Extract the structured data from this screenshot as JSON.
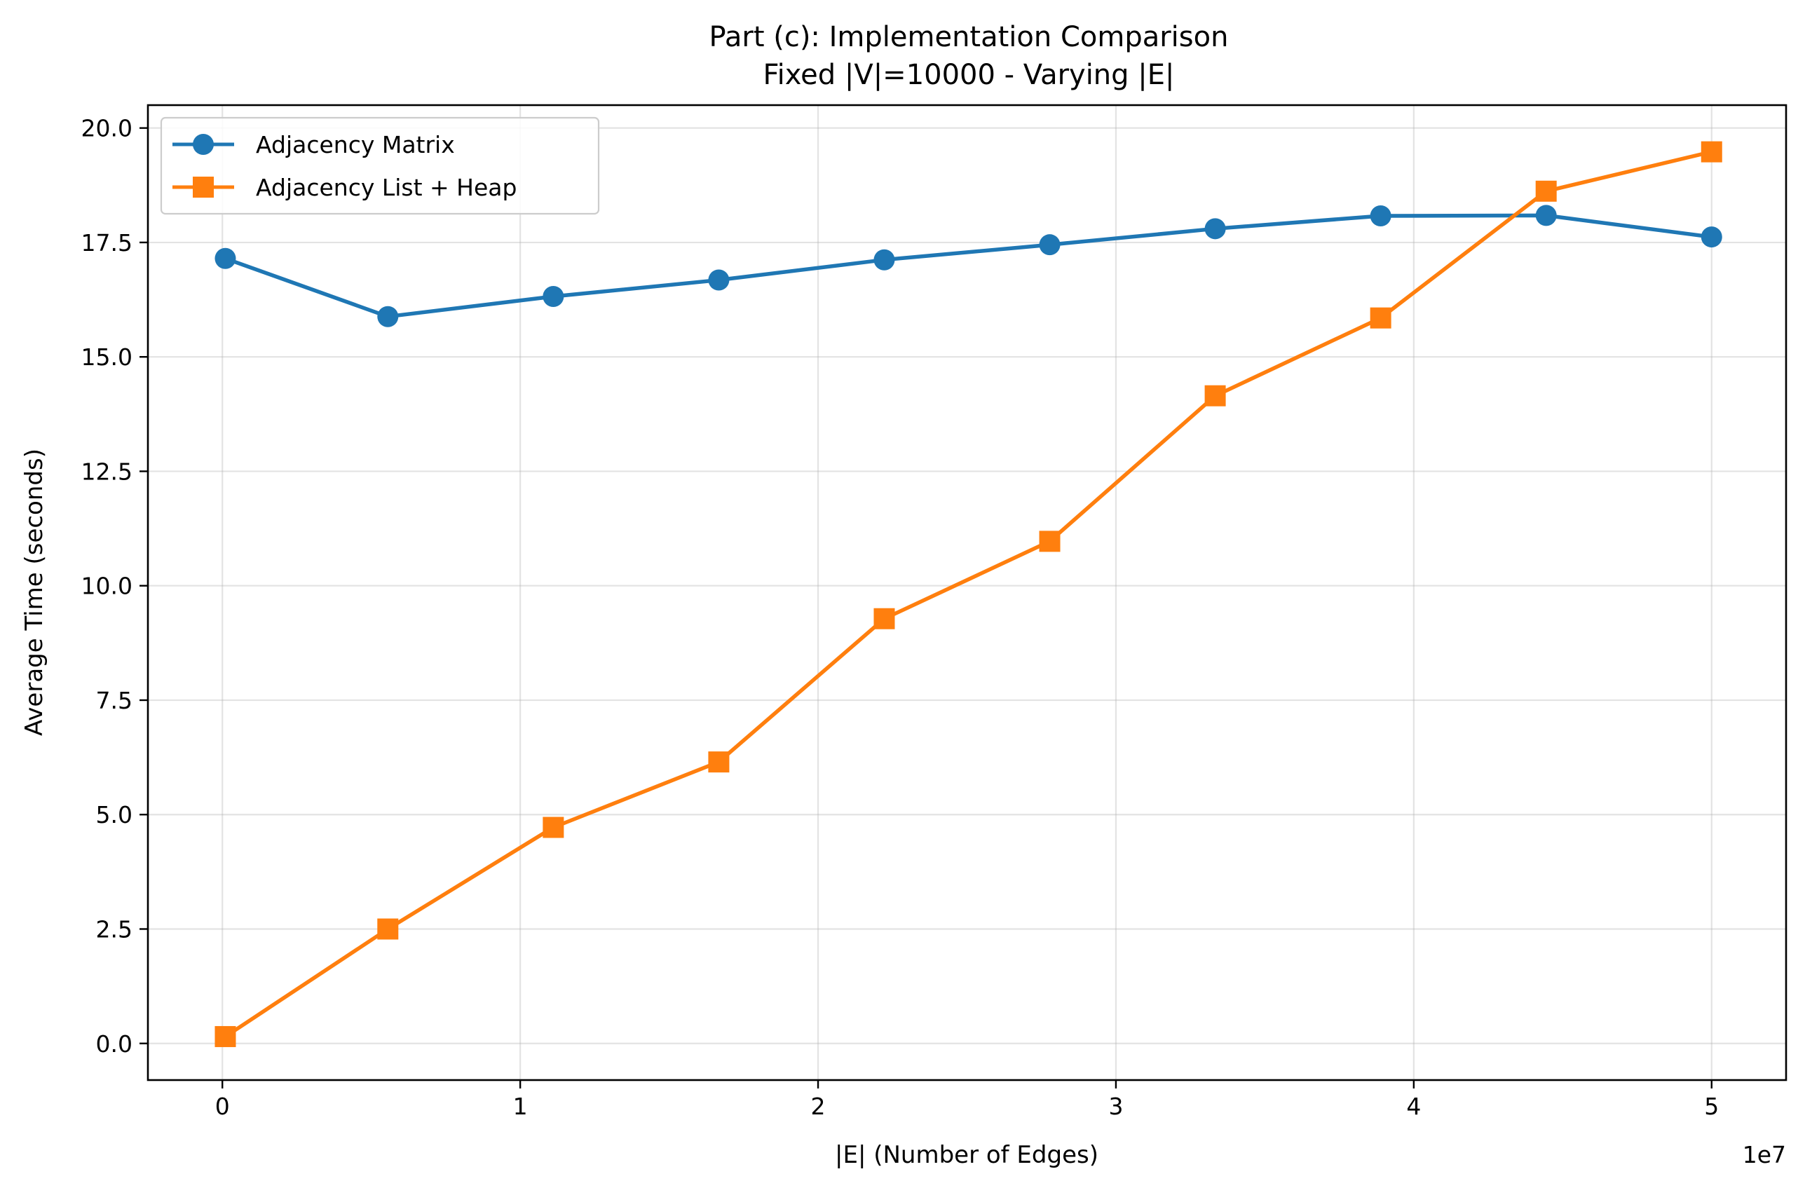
{
  "chart_data": {
    "type": "line",
    "title": "Part (c): Implementation Comparison",
    "subtitle": "Fixed |V|=10000 - Varying |E|",
    "xlabel": "|E| (Number of Edges)",
    "ylabel": "Average Time (seconds)",
    "x_offset_text": "1e7",
    "x_scale": 10000000,
    "xlim": [
      -2500000,
      52500000
    ],
    "ylim": [
      -0.8,
      20.5
    ],
    "x_ticks": [
      0,
      10000000,
      20000000,
      30000000,
      40000000,
      50000000
    ],
    "x_tick_labels": [
      "0",
      "1",
      "2",
      "3",
      "4",
      "5"
    ],
    "y_ticks": [
      0.0,
      2.5,
      5.0,
      7.5,
      10.0,
      12.5,
      15.0,
      17.5,
      20.0
    ],
    "y_tick_labels": [
      "0.0",
      "2.5",
      "5.0",
      "7.5",
      "10.0",
      "12.5",
      "15.0",
      "17.5",
      "20.0"
    ],
    "grid": true,
    "legend_position": "top-left",
    "x": [
      99990,
      5555550,
      11111110,
      16666670,
      22222220,
      27777780,
      33333330,
      38888890,
      44444440,
      50000000
    ],
    "series": [
      {
        "name": "Adjacency Matrix",
        "color": "#1f77b4",
        "marker": "circle",
        "values": [
          17.15,
          15.88,
          16.32,
          16.68,
          17.12,
          17.45,
          17.8,
          18.08,
          18.09,
          17.62
        ]
      },
      {
        "name": "Adjacency List + Heap",
        "color": "#ff7f0e",
        "marker": "square",
        "values": [
          0.15,
          2.5,
          4.72,
          6.15,
          9.28,
          10.97,
          14.15,
          15.85,
          18.62,
          19.48
        ]
      }
    ]
  }
}
